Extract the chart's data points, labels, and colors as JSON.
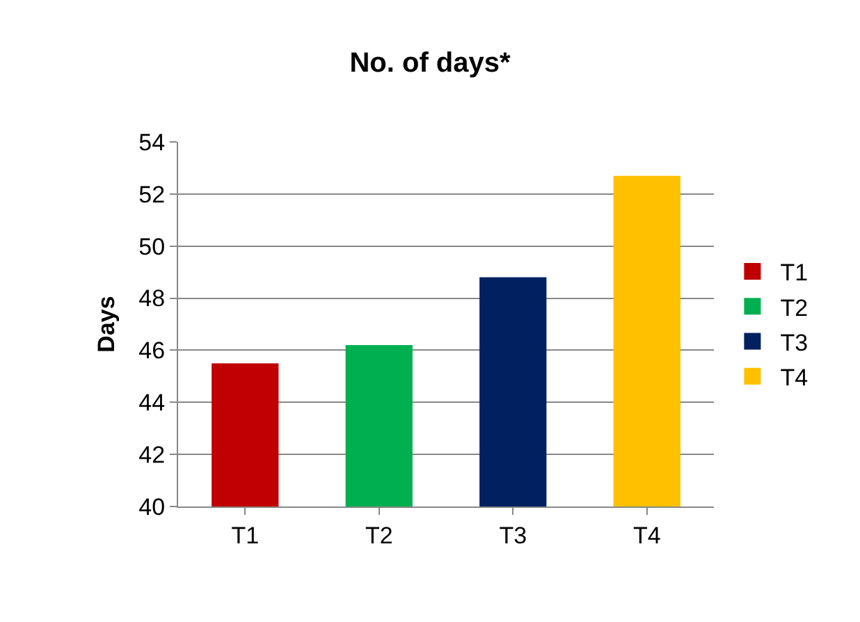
{
  "chart_data": {
    "type": "bar",
    "title": "No. of days*",
    "ylabel": "Days",
    "categories": [
      "T1",
      "T2",
      "T3",
      "T4"
    ],
    "series": [
      {
        "name": "T1",
        "color": "#c00000",
        "values": [
          45.5,
          null,
          null,
          null
        ]
      },
      {
        "name": "T2",
        "color": "#00b050",
        "values": [
          null,
          46.2,
          null,
          null
        ]
      },
      {
        "name": "T3",
        "color": "#002060",
        "values": [
          null,
          null,
          48.8,
          null
        ]
      },
      {
        "name": "T4",
        "color": "#ffc000",
        "values": [
          null,
          null,
          null,
          52.7
        ]
      }
    ],
    "ylim": [
      40,
      54
    ],
    "yticks": [
      40,
      42,
      44,
      46,
      48,
      50,
      52,
      54
    ],
    "grid": "y",
    "legend": "right"
  }
}
